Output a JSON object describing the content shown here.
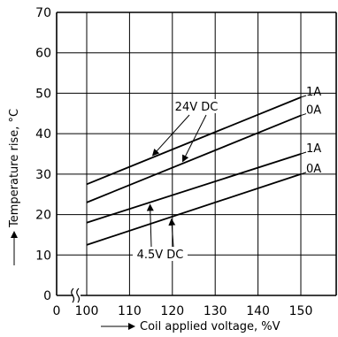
{
  "chart_data": {
    "type": "line",
    "xlabel": "Coil applied voltage, %V",
    "ylabel": "Temperature rise, °C",
    "xlim": [
      100,
      155
    ],
    "ylim": [
      0,
      70
    ],
    "x_ticks": [
      100,
      110,
      120,
      130,
      140,
      150
    ],
    "y_ticks": [
      0,
      10,
      20,
      30,
      40,
      50,
      60,
      70
    ],
    "x_origin_label": "0",
    "axis_break": "x-axis break between 0 and 100",
    "grid": true,
    "legend": "none",
    "series": [
      {
        "group": "24V DC",
        "current": "1A",
        "x": [
          100,
          150
        ],
        "y": [
          27.5,
          49
        ]
      },
      {
        "group": "24V DC",
        "current": "0A",
        "x": [
          100,
          150
        ],
        "y": [
          23,
          44.5
        ]
      },
      {
        "group": "4.5V DC",
        "current": "1A",
        "x": [
          100,
          150
        ],
        "y": [
          18,
          35
        ]
      },
      {
        "group": "4.5V DC",
        "current": "0A",
        "x": [
          100,
          150
        ],
        "y": [
          12.5,
          30
        ]
      }
    ],
    "annotations": [
      {
        "text": "24V DC",
        "points_to": [
          "24V DC / 1A",
          "24V DC / 0A"
        ]
      },
      {
        "text": "4.5V DC",
        "points_to": [
          "4.5V DC / 1A",
          "4.5V DC / 0A"
        ]
      }
    ]
  }
}
